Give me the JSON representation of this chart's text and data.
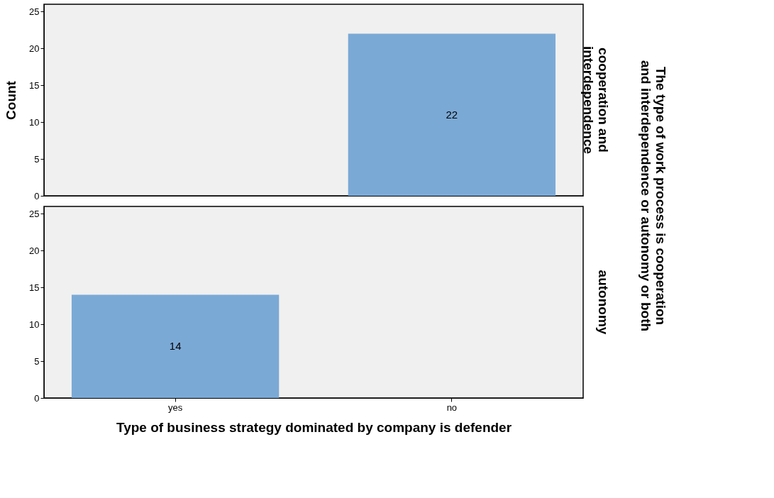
{
  "chart_data": [
    {
      "type": "bar",
      "categories": [
        null,
        null
      ],
      "series": [
        {
          "color": "#7ba9d6",
          "values": [
            null,
            22
          ]
        }
      ],
      "ylim": [
        0,
        26
      ],
      "yticks": [
        0,
        5,
        10,
        15,
        20,
        25
      ],
      "ylabel": "Count",
      "y2label": "cooperation and interdependence",
      "annotations": [
        "The type of work process is cooperation and interdependence or autonomy or both"
      ],
      "data_labels": true,
      "tick_labels": "y",
      "grid": false
    },
    {
      "type": "bar",
      "categories": [
        "yes",
        "no"
      ],
      "series": [
        {
          "color": "#7ba9d6",
          "values": [
            14,
            null
          ]
        }
      ],
      "ylim": [
        0,
        26
      ],
      "yticks": [
        0,
        5,
        10,
        15,
        20,
        25
      ],
      "xlabel": "Type of business strategy dominated by company is defender",
      "y2label": "autonomy",
      "data_labels": true,
      "grid": false
    }
  ]
}
